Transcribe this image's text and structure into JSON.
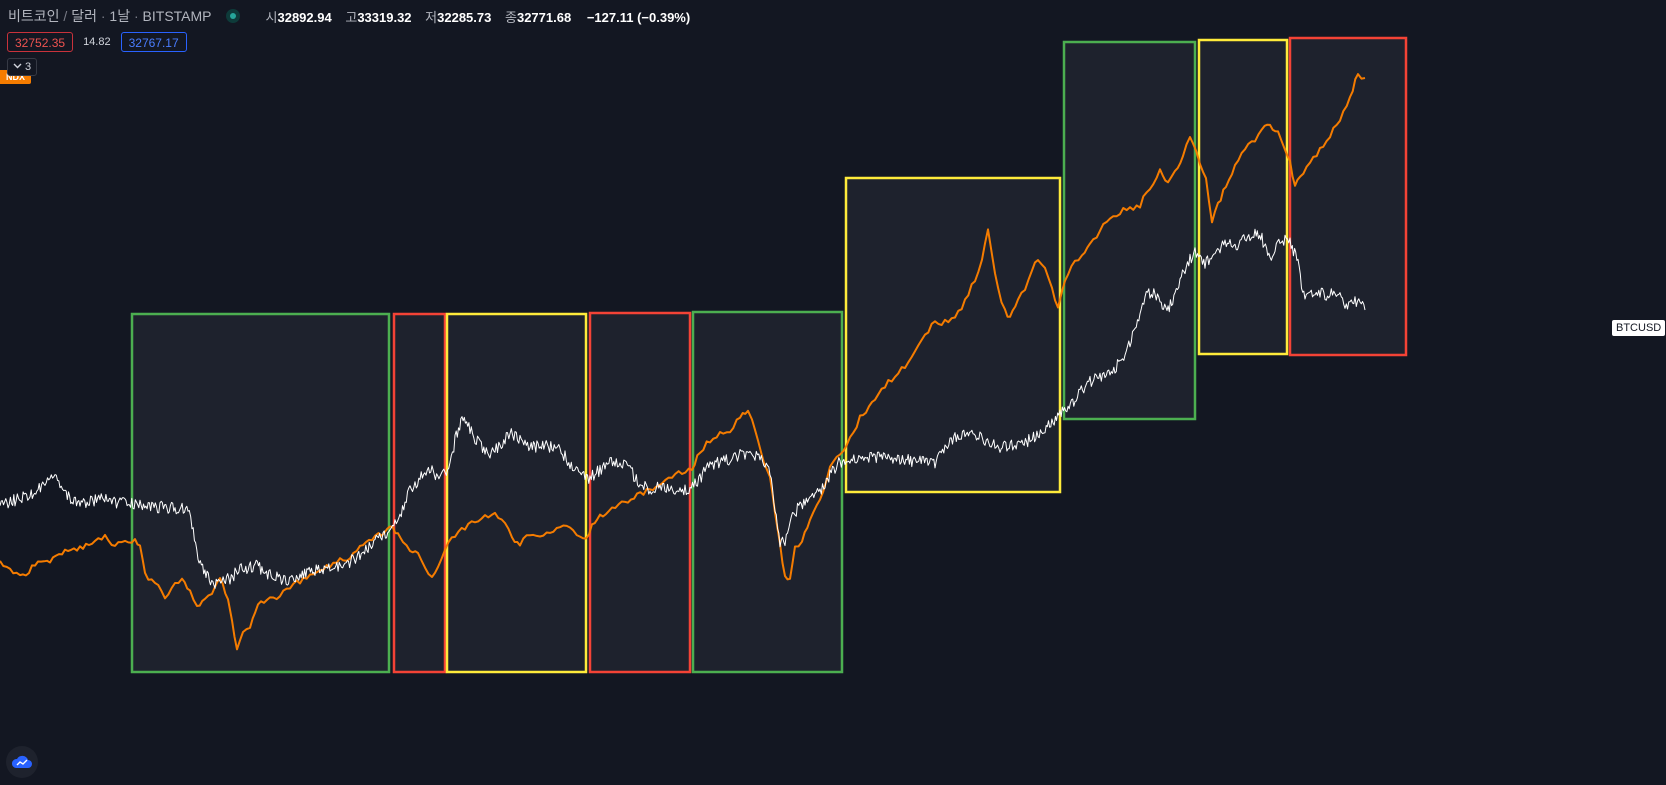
{
  "legend": {
    "symbol": "비트코인",
    "separator": "/",
    "currency": "달러",
    "interval": "1날",
    "exchange": "BITSTAMP",
    "open_label": "시",
    "open": "32892.94",
    "high_label": "고",
    "high": "33319.32",
    "low_label": "저",
    "low": "32285.73",
    "close_label": "종",
    "close": "32771.68",
    "change": "−127.11 (−0.39%)"
  },
  "prices": {
    "sell": "32752.35",
    "spread": "14.82",
    "buy": "32767.17"
  },
  "indicators_toggle": {
    "count": "3"
  },
  "labels": {
    "compare_symbol": "NDX",
    "main_symbol": "BTCUSD"
  },
  "colors": {
    "background": "#131722",
    "btc_line": "#ffffff",
    "ndx_line": "#f57c00",
    "box_fill": "#1e222d",
    "green": "#4caf50",
    "yellow": "#ffeb3b",
    "red": "#f44336"
  },
  "icons": {
    "collapse": "chevron-down-icon",
    "live": "live-status-icon",
    "logo": "tradingview-cloud-icon"
  },
  "chart_data": {
    "type": "line",
    "series": [
      {
        "name": "BTCUSD"
      },
      {
        "name": "NDX"
      }
    ],
    "phases": [
      "green",
      "red",
      "yellow",
      "red",
      "green",
      "yellow",
      "green",
      "yellow",
      "red"
    ]
  }
}
